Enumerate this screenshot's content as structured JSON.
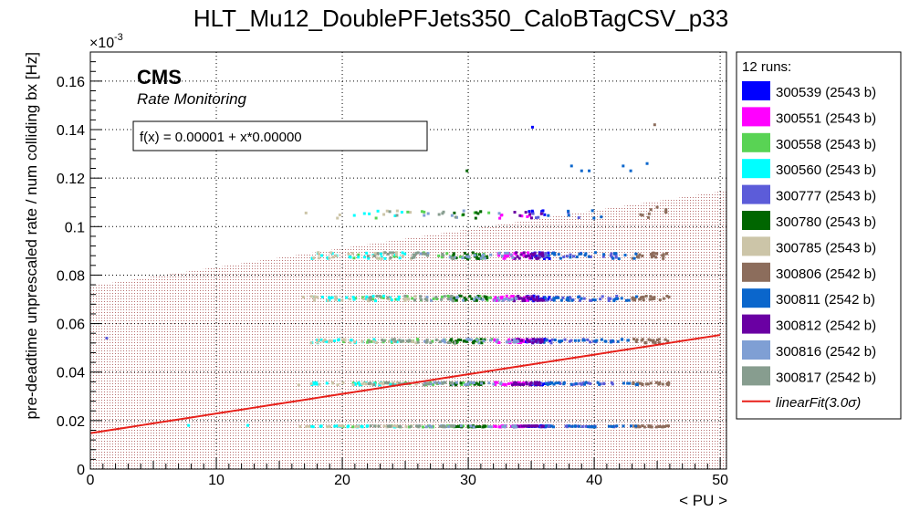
{
  "chart_data": {
    "type": "scatter",
    "title": "HLT_Mu12_DoublePFJets350_CaloBTagCSV_p33",
    "xlabel": "< PU >",
    "ylabel": "pre-deadtime unprescaled rate / num colliding bx [Hz]",
    "y_exponent": "×10",
    "y_exponent_power": "-3",
    "xlim": [
      0,
      50.5
    ],
    "ylim": [
      0,
      0.000172
    ],
    "x_ticks": [
      "0",
      "10",
      "20",
      "30",
      "40",
      "50"
    ],
    "y_ticks": [
      "0",
      "0.02",
      "0.04",
      "0.06",
      "0.08",
      "0.1",
      "0.12",
      "0.14",
      "0.16"
    ],
    "grid": true,
    "legend_position": "right",
    "legend_title": "12 runs:",
    "cms_label": "CMS",
    "subtitle": "Rate Monitoring",
    "fit_box": "f(x) = 0.00001 + x*0.00000",
    "fit": {
      "label": "linearFit(3.0σ)",
      "color": "#e8201a",
      "intercept": 1.48e-05,
      "slope": 8.1e-07,
      "band_upper_at_0": 7.55e-05,
      "band_upper_at_50": 0.0001145
    },
    "rate_levels": [
      1.76e-05,
      3.52e-05,
      5.28e-05,
      7.04e-05,
      8.8e-05,
      0.000105
    ],
    "series": [
      {
        "name": "300539 (2543 b)",
        "color": "#0000ff",
        "pu_range": [
          34.5,
          36.5
        ]
      },
      {
        "name": "300551 (2543 b)",
        "color": "#ff00ff",
        "pu_range": [
          32.0,
          35.0
        ]
      },
      {
        "name": "300558 (2543 b)",
        "color": "#59d354",
        "pu_range": [
          20.0,
          32.0
        ]
      },
      {
        "name": "300560 (2543 b)",
        "color": "#00ffff",
        "pu_range": [
          17.5,
          25.0
        ]
      },
      {
        "name": "300777 (2543 b)",
        "color": "#5c5cd9",
        "pu_range": [
          35.0,
          42.0
        ]
      },
      {
        "name": "300780 (2543 b)",
        "color": "#006600",
        "pu_range": [
          28.5,
          31.5
        ]
      },
      {
        "name": "300785 (2543 b)",
        "color": "#ccc5a8",
        "pu_range": [
          16.5,
          26.0
        ]
      },
      {
        "name": "300806 (2542 b)",
        "color": "#8c6d5c",
        "pu_range": [
          43.0,
          46.0
        ]
      },
      {
        "name": "300811 (2542 b)",
        "color": "#0a66cc",
        "pu_range": [
          36.0,
          43.5
        ]
      },
      {
        "name": "300812 (2542 b)",
        "color": "#6a00a3",
        "pu_range": [
          33.5,
          36.0
        ]
      },
      {
        "name": "300816 (2542 b)",
        "color": "#7f9fd4",
        "pu_range": [
          26.0,
          34.0
        ]
      },
      {
        "name": "300817 (2542 b)",
        "color": "#879d8f",
        "pu_range": [
          22.0,
          29.0
        ]
      }
    ],
    "outliers": [
      {
        "x": 35.1,
        "y": 0.000141,
        "color": "#0000ff"
      },
      {
        "x": 44.8,
        "y": 0.000142,
        "color": "#8c6d5c"
      },
      {
        "x": 29.9,
        "y": 0.000123,
        "color": "#006600"
      },
      {
        "x": 38.2,
        "y": 0.000125,
        "color": "#0a66cc"
      },
      {
        "x": 39.0,
        "y": 0.000123,
        "color": "#0a66cc"
      },
      {
        "x": 39.6,
        "y": 0.000123,
        "color": "#0a66cc"
      },
      {
        "x": 42.3,
        "y": 0.000125,
        "color": "#0a66cc"
      },
      {
        "x": 42.9,
        "y": 0.000123,
        "color": "#0a66cc"
      },
      {
        "x": 44.2,
        "y": 0.000126,
        "color": "#0a66cc"
      },
      {
        "x": 1.3,
        "y": 5.4e-05,
        "color": "#5c5cd9"
      },
      {
        "x": 12.5,
        "y": 1.8e-05,
        "color": "#00ffff"
      },
      {
        "x": 7.8,
        "y": 1.8e-05,
        "color": "#00ffff"
      },
      {
        "x": 23.3,
        "y": 0.000105,
        "color": "#ccc5a8"
      },
      {
        "x": 25.2,
        "y": 0.000106,
        "color": "#59d354"
      },
      {
        "x": 26.5,
        "y": 0.000106,
        "color": "#59d354"
      },
      {
        "x": 45.0,
        "y": 0.000108,
        "color": "#8c6d5c"
      },
      {
        "x": 45.7,
        "y": 0.000107,
        "color": "#8c6d5c"
      },
      {
        "x": 44.5,
        "y": 0.000107,
        "color": "#8c6d5c"
      }
    ]
  }
}
